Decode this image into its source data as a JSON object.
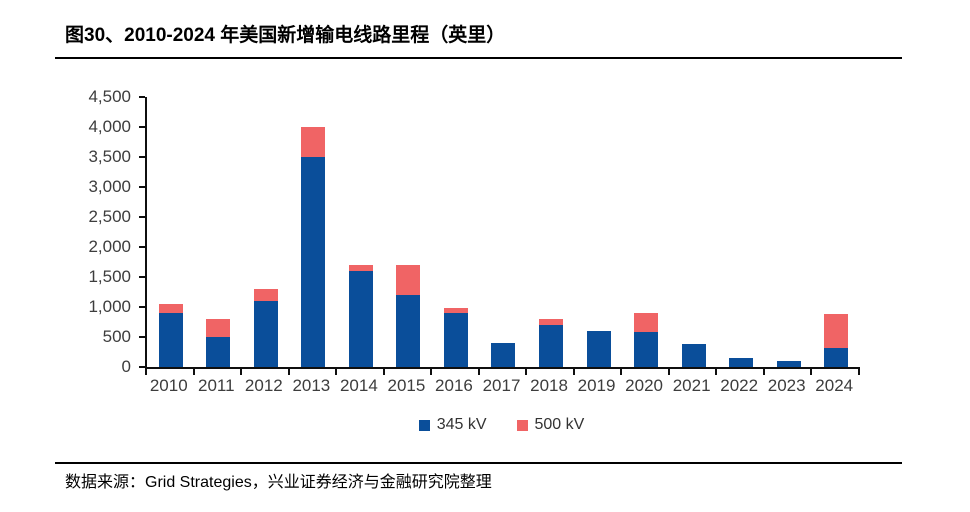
{
  "header": {
    "title": "图30、2010-2024 年美国新增输电线路里程（英里）"
  },
  "footer": {
    "source": "数据来源：Grid Strategies，兴业证券经济与金融研究院整理"
  },
  "chart_data": {
    "type": "bar",
    "stacked": true,
    "title": "图30、2010-2024 年美国新增输电线路里程（英里）",
    "xlabel": "",
    "ylabel": "",
    "categories": [
      "2010",
      "2011",
      "2012",
      "2013",
      "2014",
      "2015",
      "2016",
      "2017",
      "2018",
      "2019",
      "2020",
      "2021",
      "2022",
      "2023",
      "2024"
    ],
    "series": [
      {
        "name": "345 kV",
        "color": "#0a4e9a",
        "values": [
          900,
          500,
          1100,
          3500,
          1600,
          1200,
          900,
          400,
          700,
          600,
          580,
          390,
          150,
          100,
          320
        ]
      },
      {
        "name": "500 kV",
        "color": "#f06465",
        "values": [
          150,
          300,
          200,
          500,
          100,
          500,
          90,
          0,
          100,
          0,
          320,
          0,
          0,
          0,
          570
        ]
      }
    ],
    "ylim": [
      0,
      4500
    ],
    "yticks": [
      {
        "value": 0,
        "label": "0"
      },
      {
        "value": 500,
        "label": "500"
      },
      {
        "value": 1000,
        "label": "1,000"
      },
      {
        "value": 1500,
        "label": "1,500"
      },
      {
        "value": 2000,
        "label": "2,000"
      },
      {
        "value": 2500,
        "label": "2,500"
      },
      {
        "value": 3000,
        "label": "3,000"
      },
      {
        "value": 3500,
        "label": "3,500"
      },
      {
        "value": 4000,
        "label": "4,000"
      },
      {
        "value": 4500,
        "label": "4,500"
      }
    ],
    "grid": false,
    "legend_position": "bottom"
  }
}
